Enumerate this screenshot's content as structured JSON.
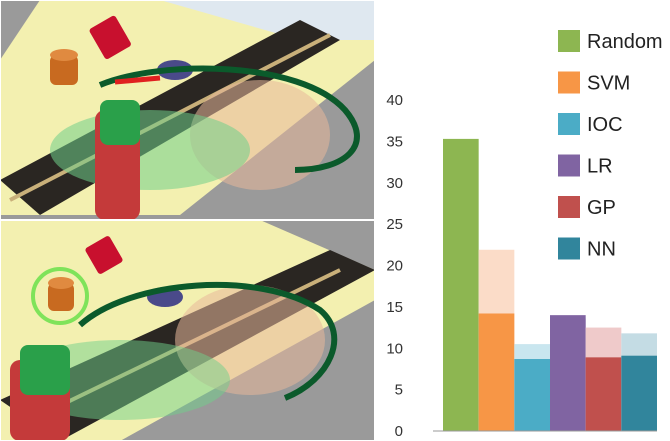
{
  "chart_data": {
    "type": "bar",
    "title": "",
    "xlabel": "",
    "ylabel": "",
    "ylim": [
      0,
      40
    ],
    "yticks": [
      0,
      5,
      10,
      15,
      20,
      25,
      30,
      35,
      40
    ],
    "grid": false,
    "legend_position": "top-right",
    "series": [
      {
        "name": "Random",
        "color": "#8DB651",
        "value": 35.3,
        "light_value": null
      },
      {
        "name": "SVM",
        "color": "#F79646",
        "value": 14.2,
        "light_value": 21.9
      },
      {
        "name": "IOC",
        "color": "#4BACC6",
        "value": 8.7,
        "light_value": 10.5
      },
      {
        "name": "LR",
        "color": "#8064A2",
        "value": 14.0,
        "light_value": 13.6
      },
      {
        "name": "GP",
        "color": "#C0504D",
        "value": 8.9,
        "light_value": 12.5
      },
      {
        "name": "NN",
        "color": "#31859C",
        "value": 9.1,
        "light_value": 11.8
      }
    ],
    "light_colors": {
      "SVM": "#FBDCC8",
      "IOC": "#C9E6EF",
      "LR": "#C8BCDA",
      "GP": "#EFCACA",
      "NN": "#C4DCE4"
    }
  },
  "scene": {
    "description_icons": [
      "robot-arm-trajectory-top",
      "robot-arm-trajectory-bottom"
    ],
    "colors": {
      "trajectory": "#0B5A2B",
      "highlight_ring": "#7FE35A",
      "table_top": "#F3F0B0",
      "floor": "#9A9A9A"
    }
  }
}
